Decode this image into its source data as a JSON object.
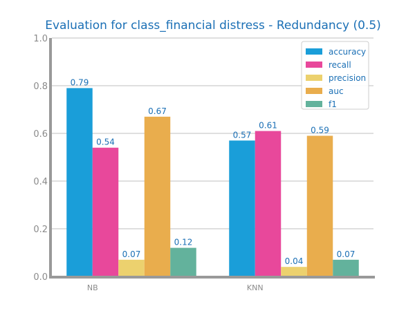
{
  "chart_data": {
    "type": "bar",
    "title": "Evaluation for class_financial distress - Redundancy (0.5)",
    "xlabel": "",
    "ylabel": "",
    "categories": [
      "NB",
      "KNN"
    ],
    "series": [
      {
        "name": "accuracy",
        "color": "#1a9ed9",
        "values": [
          0.79,
          0.57
        ]
      },
      {
        "name": "recall",
        "color": "#e8489b",
        "values": [
          0.54,
          0.61
        ]
      },
      {
        "name": "precision",
        "color": "#ecd16e",
        "values": [
          0.07,
          0.04
        ]
      },
      {
        "name": "auc",
        "color": "#e9ad4d",
        "values": [
          0.67,
          0.59
        ]
      },
      {
        "name": "f1",
        "color": "#63b29c",
        "values": [
          0.12,
          0.07
        ]
      }
    ],
    "ylim": [
      0,
      1.0
    ],
    "yticks": [
      "0.0",
      "0.2",
      "0.4",
      "0.6",
      "0.8",
      "1.0"
    ],
    "ytick_values": [
      0,
      0.2,
      0.4,
      0.6,
      0.8,
      1.0
    ],
    "grid": true,
    "legend_position": "top-right"
  }
}
